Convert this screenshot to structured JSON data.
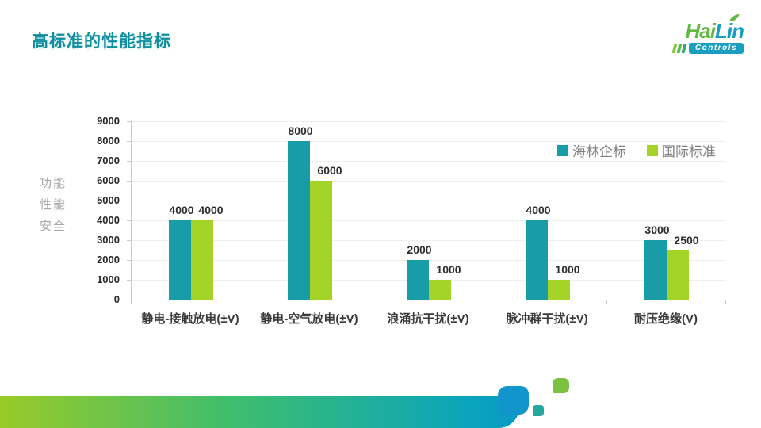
{
  "slide": {
    "title": "高标准的性能指标",
    "side_label_lines": [
      "功能",
      "性能",
      "安全"
    ]
  },
  "logo": {
    "word_left": "Hai",
    "word_right": "Lin",
    "sub": "Controls"
  },
  "chart_data": {
    "type": "bar",
    "title": "",
    "xlabel": "",
    "ylabel": "",
    "categories": [
      "静电-接触放电(±V)",
      "静电-空气放电(±V)",
      "浪涌抗干扰(±V)",
      "脉冲群干扰(±V)",
      "耐压绝缘(V)"
    ],
    "series": [
      {
        "name": "海林企标",
        "color": "#189DA8",
        "values": [
          4000,
          8000,
          2000,
          4000,
          3000
        ]
      },
      {
        "name": "国际标准",
        "color": "#A5D428",
        "values": [
          4000,
          6000,
          1000,
          1000,
          2500
        ]
      }
    ],
    "ylim": [
      0,
      9000
    ],
    "yticks": [
      0,
      1000,
      2000,
      3000,
      4000,
      5000,
      6000,
      7000,
      8000,
      9000
    ],
    "grid": true,
    "legend_position": "upper-right",
    "data_labels": true
  },
  "colors": {
    "title": "#0E8FA0",
    "series_teal": "#189DA8",
    "series_green": "#A5D428",
    "legend_text": "#808080",
    "axis_line": "#C9C9C9",
    "gridline": "#EFEFEF",
    "band_gradient": [
      "#9ACA28",
      "#3FBE6C",
      "#0AA5BC",
      "#0B98C4"
    ],
    "deco_blue": "#1295CB",
    "deco_green": "#7CC142",
    "deco_teal": "#27A89C"
  }
}
